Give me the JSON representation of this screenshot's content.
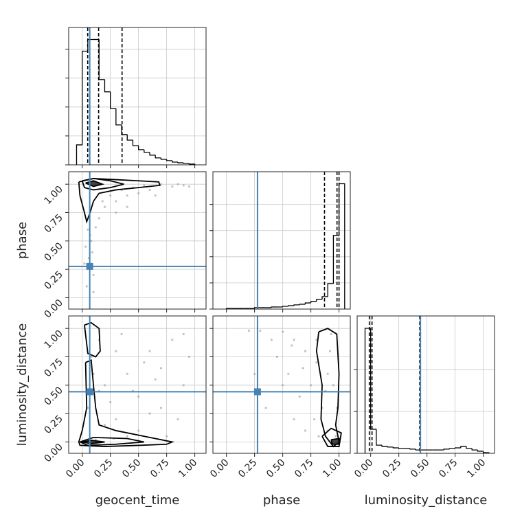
{
  "chart_data": [
    {
      "type": "histogram",
      "bins": [
        -0.05,
        0,
        0.05,
        0.1,
        0.15,
        0.2,
        0.25,
        0.3,
        0.35,
        0.4,
        0.45,
        0.5,
        0.55,
        0.6,
        0.65,
        0.7,
        0.75,
        0.8,
        0.85,
        0.9,
        0.95,
        1.0
      ],
      "counts": [
        138,
        786,
        867,
        867,
        590,
        505,
        390,
        276,
        210,
        171,
        133,
        105,
        86,
        67,
        48,
        38,
        29,
        19,
        14,
        10,
        5
      ],
      "quantiles": [
        0.049,
        0.146,
        0.354
      ],
      "truth": 0.067,
      "xlim": [
        -0.12,
        1.1
      ],
      "xticks": [
        0,
        0.25,
        0.5,
        0.75,
        1
      ],
      "ylim": [
        0,
        950
      ],
      "yticks": [
        0,
        200,
        400,
        600,
        800
      ],
      "color": "#000000",
      "truth_color": "#4682b4"
    },
    {
      "type": "scatter",
      "ylabel": "phase",
      "x": [
        0.05,
        0.08,
        0.03,
        0.06,
        0.1,
        0.04,
        0.07,
        0.12,
        0.2,
        0.3,
        0.4,
        0.5,
        0.6,
        0.8,
        0.9,
        0.35,
        0.45,
        0.25,
        0.15,
        0.55,
        0.7,
        0.85,
        0.95,
        0.3,
        0.02,
        0.09,
        0.18,
        0.65,
        0.4,
        0.1
      ],
      "y": [
        0.6,
        0.5,
        0.45,
        0.35,
        0.2,
        0.1,
        0.55,
        0.62,
        0.8,
        0.85,
        0.9,
        0.92,
        0.95,
        0.98,
        0.99,
        0.95,
        0.97,
        0.9,
        0.7,
        0.99,
        1.0,
        1.0,
        0.98,
        0.75,
        0.3,
        0.4,
        0.85,
        0.9,
        0.8,
        0.05
      ],
      "contours": [
        {
          "x": [
            -0.03,
            0.1,
            0.3,
            0.5,
            0.68,
            0.69,
            0.5,
            0.3,
            0.15,
            0.1,
            0.07,
            0.04,
            0.02,
            -0.02,
            -0.03
          ],
          "y": [
            1.02,
            1.05,
            1.04,
            1.03,
            1.02,
            0.99,
            0.97,
            0.95,
            0.92,
            0.85,
            0.75,
            0.67,
            0.75,
            0.9,
            1.02
          ]
        },
        {
          "x": [
            0.0,
            0.1,
            0.25,
            0.37,
            0.25,
            0.1,
            0.02,
            0.0
          ],
          "y": [
            1.03,
            1.05,
            1.03,
            1.0,
            0.97,
            0.95,
            0.97,
            1.03
          ]
        },
        {
          "x": [
            0.03,
            0.1,
            0.18,
            0.1,
            0.03
          ],
          "y": [
            1.01,
            1.03,
            1.0,
            0.98,
            1.01
          ]
        }
      ],
      "truth": [
        0.067,
        0.276
      ],
      "xlim": [
        -0.12,
        1.1
      ],
      "xticks": [
        0,
        0.25,
        0.5,
        0.75,
        1
      ],
      "ylim": [
        -0.1,
        1.11
      ],
      "yticks": [
        {
          "value": 0,
          "label": "0.00"
        },
        {
          "value": 0.25,
          "label": "0.25"
        },
        {
          "value": 0.5,
          "label": "0.50"
        },
        {
          "value": 0.75,
          "label": "0.75"
        },
        {
          "value": 1,
          "label": "1.00"
        }
      ],
      "color": "#000000",
      "truth_color": "#4682b4"
    },
    {
      "type": "histogram",
      "bins": [
        0,
        0.05,
        0.1,
        0.15,
        0.2,
        0.25,
        0.3,
        0.35,
        0.4,
        0.45,
        0.5,
        0.55,
        0.6,
        0.65,
        0.7,
        0.75,
        0.8,
        0.85,
        0.9,
        0.95,
        1.0,
        1.05
      ],
      "counts": [
        5,
        5,
        5,
        5,
        5,
        11,
        11,
        11,
        16,
        16,
        21,
        26,
        32,
        37,
        47,
        58,
        74,
        95,
        195,
        563,
        958
      ],
      "quantiles": [
        0.871,
        0.982,
        1.0
      ],
      "truth": 0.276,
      "xlim": [
        -0.12,
        1.1
      ],
      "xticks": [
        0,
        0.25,
        0.5,
        0.75,
        1
      ],
      "ylim": [
        0,
        1050
      ],
      "yticks": [
        0,
        200,
        400,
        600,
        800
      ],
      "color": "#000000",
      "truth_color": "#4682b4"
    },
    {
      "type": "scatter",
      "xlabel": "geocent_time",
      "ylabel": "luminosity_distance",
      "x": [
        0.05,
        0.2,
        0.4,
        0.6,
        0.8,
        0.3,
        0.5,
        0.7,
        0.9,
        0.15,
        0.35,
        0.55,
        0.25,
        0.45,
        0.65,
        0.85,
        0.1,
        0.75,
        0.95,
        0.3,
        0.5,
        0.2,
        0.6,
        0.4,
        0.08,
        0.12,
        0.28,
        0.9,
        0.7,
        0.15
      ],
      "y": [
        0.3,
        0.5,
        0.6,
        0.8,
        0.9,
        0.2,
        0.1,
        0.3,
        0.5,
        0.9,
        0.95,
        0.7,
        0.35,
        0.45,
        0.55,
        0.2,
        0.6,
        0.05,
        0.75,
        0.8,
        0.4,
        0.15,
        0.25,
        0.05,
        0.75,
        0.02,
        0.03,
        0.95,
        0.65,
        0.45
      ],
      "contours": [
        {
          "x": [
            0.02,
            0.08,
            0.15,
            0.16,
            0.12,
            0.05,
            0.02
          ],
          "y": [
            1.03,
            1.05,
            1.0,
            0.8,
            0.75,
            0.78,
            1.03
          ]
        },
        {
          "x": [
            0.03,
            0.08,
            0.1,
            0.12,
            0.15,
            0.3,
            0.6,
            0.8,
            0.75,
            0.5,
            0.2,
            -0.02,
            -0.03,
            0.0,
            0.04,
            0.03
          ],
          "y": [
            0.7,
            0.72,
            0.5,
            0.3,
            0.15,
            0.1,
            0.04,
            0.0,
            -0.02,
            -0.03,
            -0.04,
            -0.03,
            0.0,
            0.1,
            0.3,
            0.7
          ]
        },
        {
          "x": [
            -0.02,
            0.1,
            0.4,
            0.55,
            0.3,
            0.05,
            -0.02
          ],
          "y": [
            0.0,
            0.04,
            0.03,
            0.0,
            -0.02,
            -0.03,
            0.0
          ]
        },
        {
          "x": [
            0.0,
            0.08,
            0.2,
            0.08,
            0.0
          ],
          "y": [
            0.0,
            0.015,
            0.0,
            -0.015,
            0.0
          ]
        }
      ],
      "truth": [
        0.067,
        0.442
      ],
      "xlim": [
        -0.12,
        1.1
      ],
      "xticks": [
        {
          "value": 0,
          "label": "0.00"
        },
        {
          "value": 0.25,
          "label": "0.25"
        },
        {
          "value": 0.5,
          "label": "0.50"
        },
        {
          "value": 0.75,
          "label": "0.75"
        },
        {
          "value": 1,
          "label": "1.00"
        }
      ],
      "ylim": [
        -0.1,
        1.11
      ],
      "yticks": [
        {
          "value": 0,
          "label": "0.00"
        },
        {
          "value": 0.25,
          "label": "0.25"
        },
        {
          "value": 0.5,
          "label": "0.50"
        },
        {
          "value": 0.75,
          "label": "0.75"
        },
        {
          "value": 1,
          "label": "1.00"
        }
      ],
      "color": "#000000",
      "truth_color": "#4682b4"
    },
    {
      "type": "scatter",
      "xlabel": "phase",
      "x": [
        0.3,
        0.5,
        0.6,
        0.7,
        0.8,
        0.9,
        0.95,
        0.85,
        0.9,
        0.97,
        0.75,
        0.65,
        0.55,
        0.45,
        0.4,
        0.6,
        0.7,
        0.8,
        0.92,
        0.5,
        0.35,
        0.2,
        0.88,
        0.78,
        0.68,
        0.98,
        0.93,
        0.58,
        0.82,
        0.25
      ],
      "y": [
        0.98,
        0.97,
        0.9,
        0.8,
        0.7,
        0.6,
        0.5,
        0.3,
        0.1,
        0.05,
        0.5,
        0.4,
        0.6,
        0.75,
        0.9,
        0.2,
        0.1,
        0.9,
        0.8,
        0.5,
        0.3,
        0.98,
        0.45,
        0.2,
        0.65,
        0.3,
        0.95,
        0.85,
        0.05,
        0.6
      ],
      "contours": [
        {
          "x": [
            0.82,
            0.9,
            0.98,
            1.0,
            0.99,
            0.97,
            1.0,
            0.95,
            0.88,
            0.84,
            0.85,
            0.8,
            0.82
          ],
          "y": [
            0.97,
            1.0,
            0.95,
            0.6,
            0.3,
            0.15,
            0.0,
            -0.04,
            0.05,
            0.2,
            0.5,
            0.8,
            0.97
          ]
        },
        {
          "x": [
            0.85,
            0.93,
            1.02,
            1.0,
            0.9,
            0.85
          ],
          "y": [
            0.05,
            0.12,
            0.08,
            -0.04,
            -0.04,
            0.05
          ]
        },
        {
          "x": [
            0.93,
            1.0,
            1.0,
            0.94,
            0.93
          ],
          "y": [
            0.02,
            0.03,
            -0.02,
            -0.02,
            0.02
          ]
        }
      ],
      "truth": [
        0.276,
        0.442
      ],
      "xlim": [
        -0.12,
        1.1
      ],
      "xticks": [
        {
          "value": 0,
          "label": "0.00"
        },
        {
          "value": 0.25,
          "label": "0.25"
        },
        {
          "value": 0.5,
          "label": "0.50"
        },
        {
          "value": 0.75,
          "label": "0.75"
        },
        {
          "value": 1,
          "label": "1.00"
        }
      ],
      "ylim": [
        -0.1,
        1.11
      ],
      "yticks": [
        0,
        0.25,
        0.5,
        0.75,
        1
      ],
      "color": "#000000",
      "truth_color": "#4682b4"
    },
    {
      "type": "histogram",
      "xlabel": "luminosity_distance",
      "bins": [
        -0.05,
        0,
        0.05,
        0.1,
        0.15,
        0.2,
        0.25,
        0.3,
        0.35,
        0.4,
        0.45,
        0.5,
        0.55,
        0.6,
        0.65,
        0.7,
        0.75,
        0.8,
        0.85,
        0.9,
        0.95,
        1.0,
        1.05
      ],
      "counts": [
        597,
        115,
        39,
        33,
        30,
        26,
        23,
        23,
        20,
        16,
        16,
        16,
        16,
        16,
        20,
        23,
        26,
        33,
        23,
        16,
        10,
        3
      ],
      "quantiles": [
        -0.012,
        0.012,
        0.436
      ],
      "truth": 0.442,
      "xlim": [
        -0.12,
        1.1
      ],
      "xticks": [
        {
          "value": 0,
          "label": "0.00"
        },
        {
          "value": 0.25,
          "label": "0.25"
        },
        {
          "value": 0.5,
          "label": "0.50"
        },
        {
          "value": 0.75,
          "label": "0.75"
        },
        {
          "value": 1,
          "label": "1.00"
        }
      ],
      "ylim": [
        0,
        656
      ],
      "yticks": [
        0,
        200,
        400
      ],
      "color": "#000000",
      "truth_color": "#4682b4"
    }
  ]
}
